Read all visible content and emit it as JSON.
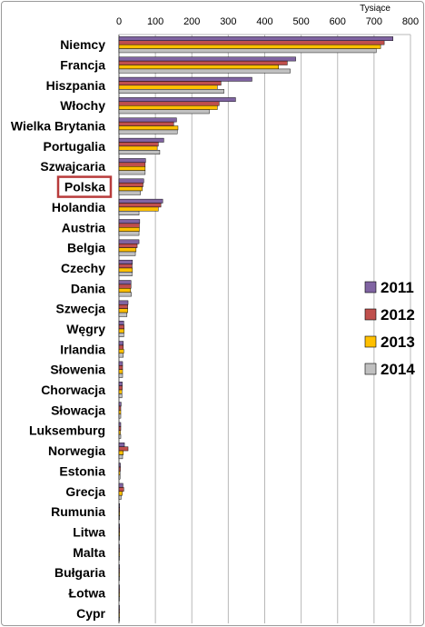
{
  "chart_data": {
    "type": "bar",
    "orientation": "horizontal",
    "unit_label": "Tysiące",
    "xlim": [
      0,
      800
    ],
    "xticks": [
      0,
      100,
      200,
      300,
      400,
      500,
      600,
      700,
      800
    ],
    "grid": true,
    "legend_position": "right",
    "highlighted_category": "Polska",
    "categories": [
      "Niemcy",
      "Francja",
      "Hiszpania",
      "Włochy",
      "Wielka Brytania",
      "Portugalia",
      "Szwajcaria",
      "Polska",
      "Holandia",
      "Austria",
      "Belgia",
      "Czechy",
      "Dania",
      "Szwecja",
      "Węgry",
      "Irlandia",
      "Słowenia",
      "Chorwacja",
      "Słowacja",
      "Luksemburg",
      "Norwegia",
      "Estonia",
      "Grecja",
      "Rumunia",
      "Litwa",
      "Malta",
      "Bułgaria",
      "Łotwa",
      "Cypr"
    ],
    "series": [
      {
        "name": "2011",
        "color": "#8064a2",
        "values": [
          752,
          485,
          365,
          320,
          158,
          123,
          73,
          68,
          120,
          57,
          55,
          37,
          33,
          25,
          13,
          12,
          10,
          9,
          6,
          5,
          15,
          4,
          11,
          2,
          2,
          1,
          1,
          1,
          1
        ]
      },
      {
        "name": "2012",
        "color": "#c0504d",
        "values": [
          728,
          462,
          280,
          275,
          150,
          108,
          72,
          66,
          115,
          56,
          50,
          36,
          33,
          24,
          14,
          12,
          10,
          9,
          5,
          5,
          25,
          4,
          13,
          2,
          2,
          1,
          1,
          1,
          1
        ]
      },
      {
        "name": "2013",
        "color": "#ffc000",
        "values": [
          718,
          438,
          270,
          270,
          162,
          105,
          72,
          64,
          108,
          56,
          47,
          37,
          32,
          24,
          14,
          13,
          10,
          8,
          5,
          4,
          12,
          3,
          9,
          2,
          2,
          1,
          1,
          1,
          1
        ]
      },
      {
        "name": "2014",
        "color": "#c0c0c0",
        "values": [
          706,
          470,
          288,
          248,
          160,
          112,
          72,
          59,
          55,
          55,
          45,
          36,
          34,
          22,
          13,
          12,
          10,
          8,
          5,
          5,
          10,
          3,
          6,
          2,
          2,
          1,
          1,
          1,
          1
        ]
      }
    ]
  }
}
